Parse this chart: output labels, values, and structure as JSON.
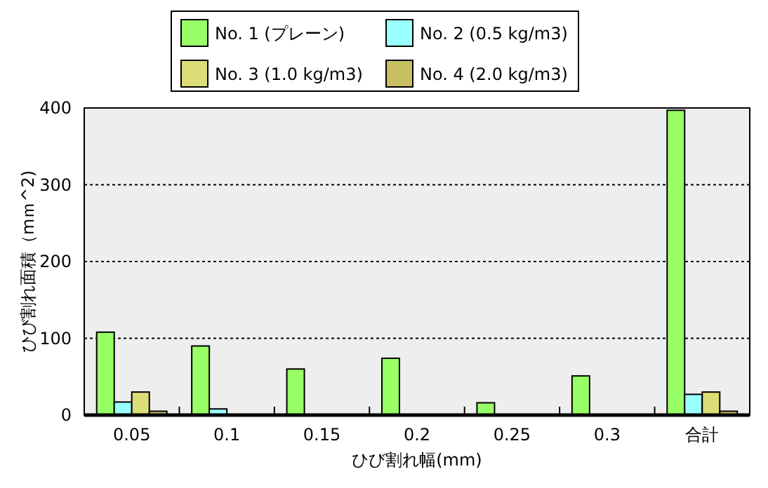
{
  "chart_data": {
    "type": "bar",
    "xlabel": "ひび割れ幅(mm)",
    "ylabel": "ひび割れ面積（mｍ^2)",
    "categories": [
      "0.05",
      "0.1",
      "0.15",
      "0.2",
      "0.25",
      "0.3",
      "合計"
    ],
    "series": [
      {
        "name": "No. 1 (プレーン)",
        "color": "#99ff66",
        "values": [
          108,
          90,
          60,
          74,
          16,
          51,
          397
        ]
      },
      {
        "name": "No. 2 (0.5 kg/m3)",
        "color": "#99ffff",
        "values": [
          17,
          8,
          null,
          null,
          null,
          null,
          27
        ]
      },
      {
        "name": "No. 3 (1.0 kg/m3)",
        "color": "#dddd77",
        "values": [
          30,
          null,
          null,
          null,
          null,
          null,
          30
        ]
      },
      {
        "name": "No. 4 (2.0 kg/m3)",
        "color": "#c8c060",
        "values": [
          5,
          null,
          null,
          null,
          null,
          null,
          5
        ]
      }
    ],
    "ylim": [
      0,
      400
    ],
    "yticks": [
      0,
      100,
      200,
      300,
      400
    ],
    "grid": "y",
    "legend": "top"
  }
}
